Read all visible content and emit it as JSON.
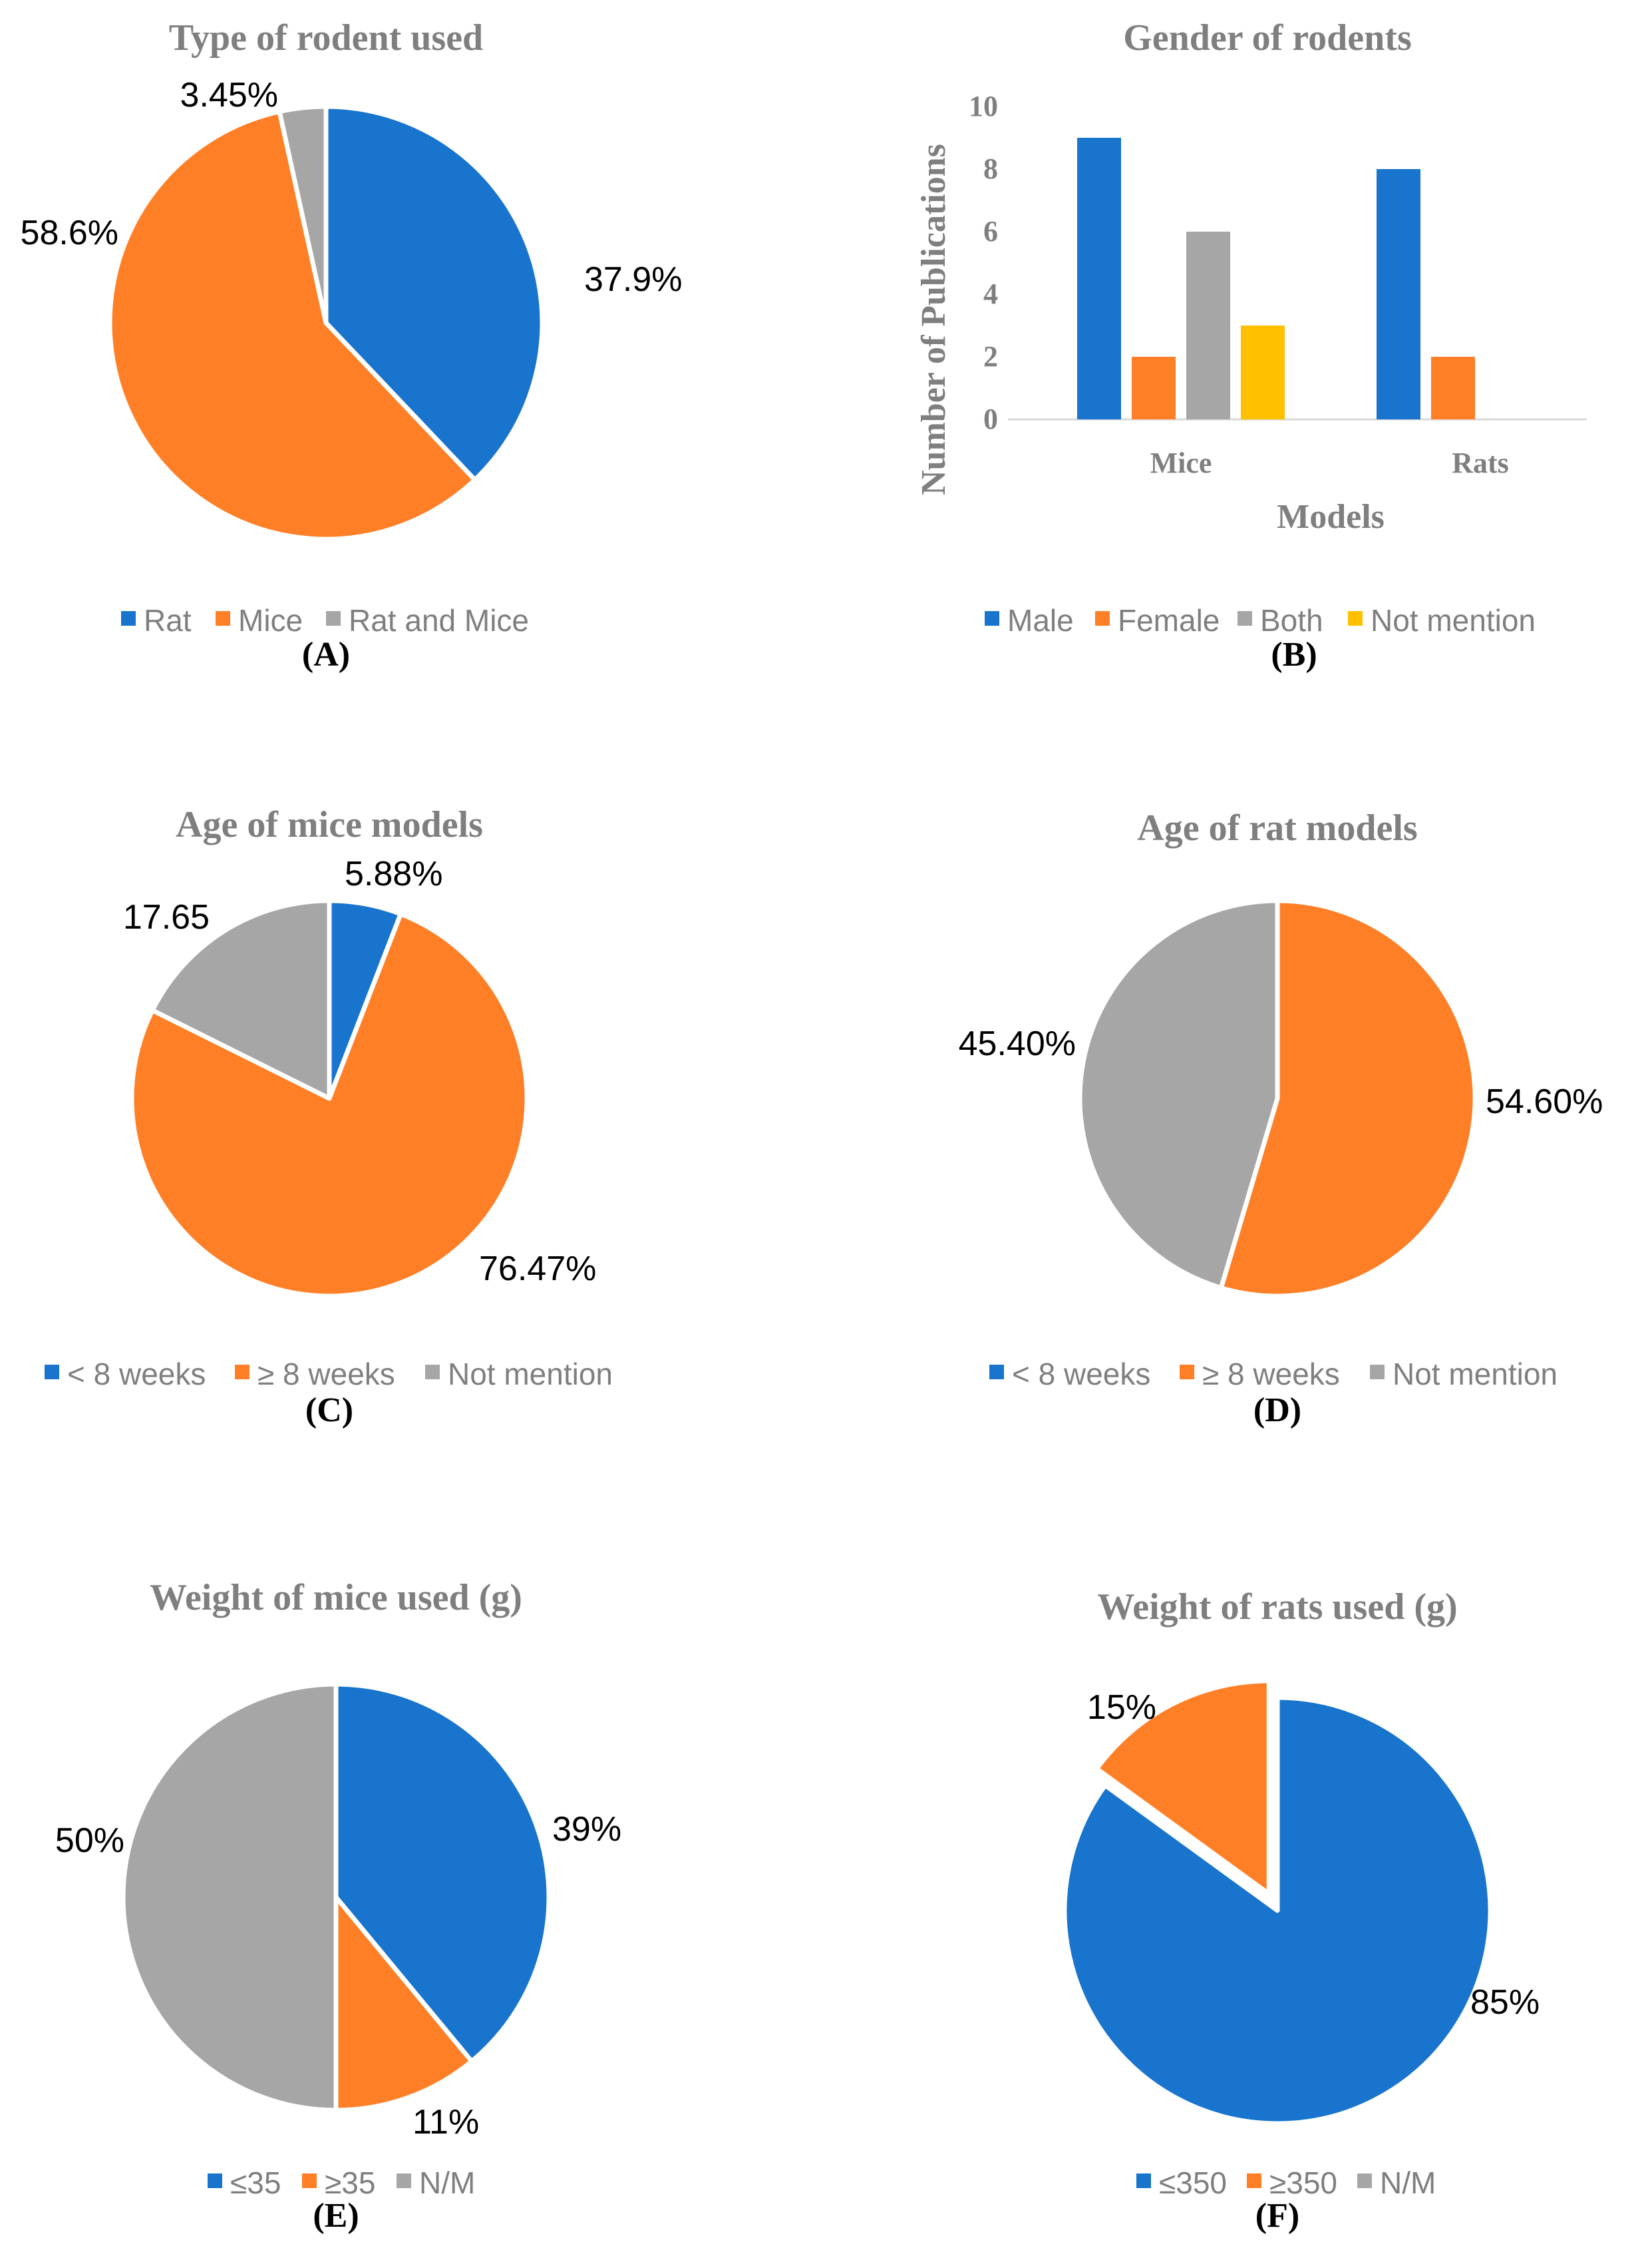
{
  "colors": {
    "blue": "#1874CD",
    "orange": "#FF7F27",
    "gray": "#A6A6A6",
    "yellow": "#FFC000",
    "title_gray": "#7F7F7F"
  },
  "chart_data": [
    {
      "id": "A",
      "type": "pie",
      "title": "Type of rodent used",
      "panel_label": "(A)",
      "categories": [
        "Rat",
        "Mice",
        "Rat and Mice"
      ],
      "values": [
        37.9,
        58.6,
        3.45
      ],
      "data_labels": [
        "37.9%",
        "58.6%",
        "3.45%"
      ],
      "colors": [
        "#1874CD",
        "#FF7F27",
        "#A6A6A6"
      ],
      "legend_position": "bottom"
    },
    {
      "id": "B",
      "type": "bar",
      "title": "Gender of rodents",
      "panel_label": "(B)",
      "xlabel": "Models",
      "ylabel": "Number of Publications",
      "categories": [
        "Mice",
        "Rats"
      ],
      "series": [
        {
          "name": "Male",
          "values": [
            9,
            8
          ],
          "color": "#1874CD"
        },
        {
          "name": "Female",
          "values": [
            2,
            2
          ],
          "color": "#FF7F27"
        },
        {
          "name": "Both",
          "values": [
            6,
            0
          ],
          "color": "#A6A6A6"
        },
        {
          "name": "Not mention",
          "values": [
            3,
            0
          ],
          "color": "#FFC000"
        }
      ],
      "ylim": [
        0,
        10
      ],
      "yticks": [
        "0",
        "2",
        "4",
        "6",
        "8",
        "10"
      ],
      "grid": false,
      "legend_position": "bottom"
    },
    {
      "id": "C",
      "type": "pie",
      "title": "Age of mice models",
      "panel_label": "(C)",
      "categories": [
        "< 8 weeks",
        "≥ 8 weeks",
        "Not mention"
      ],
      "values": [
        5.88,
        76.47,
        17.65
      ],
      "data_labels": [
        "5.88%",
        "76.47%",
        "17.65"
      ],
      "colors": [
        "#1874CD",
        "#FF7F27",
        "#A6A6A6"
      ],
      "legend_position": "bottom"
    },
    {
      "id": "D",
      "type": "pie",
      "title": "Age of rat models",
      "panel_label": "(D)",
      "categories": [
        "< 8 weeks",
        "≥ 8 weeks",
        "Not mention"
      ],
      "values": [
        0,
        54.6,
        45.4
      ],
      "data_labels": [
        "",
        "54.60%",
        "45.40%"
      ],
      "colors": [
        "#1874CD",
        "#FF7F27",
        "#A6A6A6"
      ],
      "legend_position": "bottom"
    },
    {
      "id": "E",
      "type": "pie",
      "title": "Weight of mice used (g)",
      "panel_label": "(E)",
      "categories": [
        "≤35",
        "≥35",
        "N/M"
      ],
      "values": [
        39,
        11,
        50
      ],
      "data_labels": [
        "39%",
        "11%",
        "50%"
      ],
      "colors": [
        "#1874CD",
        "#FF7F27",
        "#A6A6A6"
      ],
      "legend_position": "bottom"
    },
    {
      "id": "F",
      "type": "pie",
      "title": "Weight of rats used (g)",
      "panel_label": "(F)",
      "categories": [
        "≤350",
        "≥350",
        "N/M"
      ],
      "values": [
        85,
        15,
        0
      ],
      "data_labels": [
        "85%",
        "15%",
        ""
      ],
      "colors": [
        "#1874CD",
        "#FF7F27",
        "#A6A6A6"
      ],
      "exploded": [
        1
      ],
      "legend_position": "bottom"
    }
  ]
}
